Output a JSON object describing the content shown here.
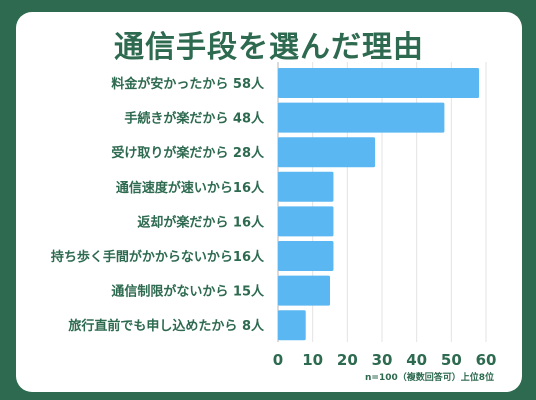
{
  "colors": {
    "background": "#2d6a50",
    "card": "#ffffff",
    "bar": "#5bb7f2",
    "text": "#2d6a50"
  },
  "chart_data": {
    "type": "bar",
    "orientation": "horizontal",
    "title": "通信手段を選んだ理由",
    "categories": [
      "料金が安かったから 58人",
      "手続きが楽だから 48人",
      "受け取りが楽だから 28人",
      "通信速度が速いから16人",
      "返却が楽だから 16人",
      "持ち歩く手間がかからないから16人",
      "通信制限がないから 15人",
      "旅行直前でも申し込めたから 8人"
    ],
    "values": [
      58,
      48,
      28,
      16,
      16,
      16,
      15,
      8
    ],
    "xlim": [
      0,
      60
    ],
    "xticks": [
      "0",
      "10",
      "20",
      "30",
      "40",
      "50",
      "60"
    ],
    "grid": true,
    "note": "n=100（複数回答可）上位8位"
  }
}
